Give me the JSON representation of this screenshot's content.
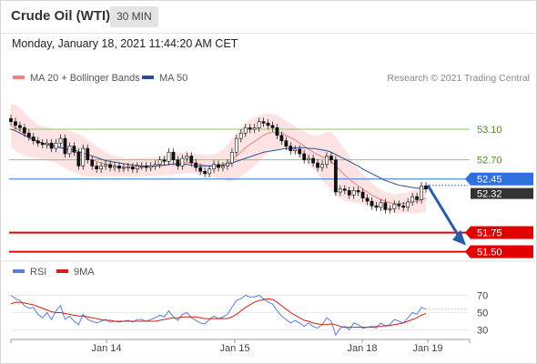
{
  "header": {
    "instrument": "Crude Oil (WTI)",
    "timeframe": "30 MIN"
  },
  "datetime": "Monday, January 18, 2021 11:44:20 AM CET",
  "legend": {
    "ma_bb": {
      "label": "MA 20 + Bollinger Bands",
      "color": "#f08080"
    },
    "ma50": {
      "label": "MA 50",
      "color": "#2e4f8f"
    }
  },
  "copyright": "Research © 2021 Trading Central",
  "rsi_legend": {
    "rsi": {
      "label": "RSI",
      "color": "#5b7fd6"
    },
    "ma9": {
      "label": "9MA",
      "color": "#d02020"
    }
  },
  "chart_data": {
    "type": "line",
    "instrument": "Crude Oil (WTI)",
    "timeframe": "30 MIN",
    "x_tick_labels": [
      "Jan 14",
      "Jan 15",
      "Jan 18",
      "Jan 19"
    ],
    "ylim": [
      51.4,
      53.6
    ],
    "price": [
      53.2,
      53.15,
      53.12,
      53.05,
      53.0,
      52.95,
      52.92,
      52.9,
      52.92,
      52.85,
      52.92,
      52.98,
      52.78,
      52.88,
      52.8,
      52.62,
      52.85,
      52.7,
      52.62,
      52.58,
      52.62,
      52.64,
      52.6,
      52.62,
      52.59,
      52.6,
      52.61,
      52.58,
      52.62,
      52.62,
      52.6,
      52.62,
      52.64,
      52.7,
      52.68,
      52.8,
      52.7,
      52.62,
      52.72,
      52.75,
      52.66,
      52.6,
      52.55,
      52.52,
      52.58,
      52.64,
      52.6,
      52.62,
      52.66,
      52.8,
      52.98,
      53.05,
      53.12,
      53.1,
      53.12,
      53.2,
      53.18,
      53.15,
      53.12,
      53.02,
      52.95,
      52.88,
      52.82,
      52.84,
      52.78,
      52.7,
      52.72,
      52.66,
      52.6,
      52.64,
      52.75,
      52.7,
      52.28,
      52.32,
      52.3,
      52.24,
      52.3,
      52.28,
      52.2,
      52.16,
      52.1,
      52.08,
      52.14,
      52.05,
      52.06,
      52.12,
      52.1,
      52.08,
      52.15,
      52.22,
      52.18,
      52.36,
      52.32
    ],
    "ma50": [
      53.1,
      53.08,
      53.05,
      53.02,
      52.99,
      52.96,
      52.94,
      52.92,
      52.9,
      52.88,
      52.87,
      52.86,
      52.85,
      52.84,
      52.83,
      52.81,
      52.79,
      52.77,
      52.75,
      52.73,
      52.71,
      52.69,
      52.68,
      52.67,
      52.66,
      52.65,
      52.64,
      52.63,
      52.63,
      52.62,
      52.62,
      52.62,
      52.62,
      52.63,
      52.63,
      52.64,
      52.64,
      52.64,
      52.64,
      52.64,
      52.63,
      52.62,
      52.62,
      52.62,
      52.62,
      52.62,
      52.62,
      52.63,
      52.64,
      52.66,
      52.68,
      52.7,
      52.72,
      52.74,
      52.76,
      52.78,
      52.8,
      52.81,
      52.82,
      52.83,
      52.84,
      52.85,
      52.85,
      52.86,
      52.86,
      52.86,
      52.85,
      52.85,
      52.84,
      52.83,
      52.82,
      52.8,
      52.77,
      52.74,
      52.71,
      52.68,
      52.65,
      52.62,
      52.58,
      52.55,
      52.52,
      52.49,
      52.46,
      52.43,
      52.41,
      52.39,
      52.37,
      52.36,
      52.35,
      52.34,
      52.33,
      52.33,
      52.32
    ],
    "ma20": [
      53.15,
      53.12,
      53.08,
      53.04,
      53.0,
      52.97,
      52.94,
      52.92,
      52.91,
      52.9,
      52.88,
      52.86,
      52.84,
      52.82,
      52.8,
      52.78,
      52.75,
      52.72,
      52.7,
      52.68,
      52.66,
      52.64,
      52.63,
      52.62,
      52.61,
      52.61,
      52.6,
      52.6,
      52.6,
      52.6,
      52.61,
      52.61,
      52.62,
      52.62,
      52.63,
      52.64,
      52.65,
      52.66,
      52.66,
      52.66,
      52.66,
      52.65,
      52.64,
      52.63,
      52.62,
      52.62,
      52.63,
      52.64,
      52.66,
      52.7,
      52.75,
      52.8,
      52.86,
      52.9,
      52.94,
      52.98,
      53.02,
      53.05,
      53.06,
      53.06,
      53.05,
      53.02,
      52.99,
      52.96,
      52.92,
      52.88,
      52.84,
      52.8,
      52.77,
      52.74,
      52.72,
      52.68,
      52.62,
      52.56,
      52.5,
      52.45,
      52.4,
      52.36,
      52.32,
      52.28,
      52.24,
      52.21,
      52.18,
      52.16,
      52.14,
      52.13,
      52.13,
      52.13,
      52.14,
      52.15,
      52.16,
      52.18,
      52.2
    ],
    "bb_width": [
      0.28,
      0.3,
      0.3,
      0.28,
      0.26,
      0.24,
      0.22,
      0.22,
      0.22,
      0.22,
      0.22,
      0.24,
      0.25,
      0.26,
      0.26,
      0.26,
      0.26,
      0.24,
      0.22,
      0.2,
      0.18,
      0.16,
      0.14,
      0.14,
      0.13,
      0.12,
      0.12,
      0.12,
      0.12,
      0.12,
      0.12,
      0.12,
      0.12,
      0.13,
      0.13,
      0.14,
      0.14,
      0.14,
      0.14,
      0.13,
      0.13,
      0.13,
      0.13,
      0.14,
      0.14,
      0.15,
      0.17,
      0.2,
      0.24,
      0.28,
      0.3,
      0.32,
      0.33,
      0.33,
      0.32,
      0.3,
      0.28,
      0.26,
      0.24,
      0.22,
      0.2,
      0.19,
      0.18,
      0.18,
      0.18,
      0.19,
      0.2,
      0.22,
      0.25,
      0.3,
      0.35,
      0.38,
      0.38,
      0.36,
      0.34,
      0.3,
      0.26,
      0.22,
      0.2,
      0.18,
      0.16,
      0.14,
      0.13,
      0.12,
      0.12,
      0.12,
      0.13,
      0.13,
      0.14,
      0.15,
      0.16,
      0.17,
      0.18
    ],
    "levels": [
      {
        "value": 53.1,
        "label": "53.10",
        "color": "#8fc46a",
        "style": "resistance"
      },
      {
        "value": 52.7,
        "label": "52.70",
        "color": "#8fc46a",
        "style": "resistance"
      },
      {
        "value": 52.45,
        "label": "52.45",
        "color": "#2f6fe0",
        "style": "pivot"
      },
      {
        "value": 51.75,
        "label": "51.75",
        "color": "#e00000",
        "style": "support"
      },
      {
        "value": 51.5,
        "label": "51.50",
        "color": "#e00000",
        "style": "support"
      }
    ],
    "last_price": {
      "value": 52.32,
      "label": "52.32",
      "color": "#333333"
    },
    "forecast": {
      "from": 52.32,
      "to": 51.75,
      "color": "#2b5aa8"
    },
    "rsi": {
      "ticks": [
        70,
        50,
        30
      ],
      "ylim": [
        20,
        80
      ],
      "values": [
        70,
        66,
        64,
        58,
        55,
        56,
        48,
        44,
        50,
        42,
        52,
        58,
        42,
        46,
        40,
        36,
        48,
        42,
        40,
        38,
        40,
        42,
        39,
        40,
        39,
        40,
        41,
        39,
        42,
        42,
        40,
        42,
        44,
        47,
        45,
        52,
        45,
        41,
        48,
        50,
        44,
        41,
        38,
        37,
        42,
        46,
        43,
        45,
        48,
        56,
        64,
        66,
        70,
        68,
        68,
        70,
        66,
        62,
        60,
        52,
        46,
        42,
        38,
        41,
        38,
        34,
        38,
        34,
        32,
        36,
        44,
        40,
        24,
        32,
        34,
        30,
        38,
        36,
        32,
        33,
        34,
        32,
        38,
        34,
        36,
        42,
        40,
        38,
        44,
        50,
        48,
        56,
        54
      ],
      "ma9": [
        60,
        62,
        62,
        61,
        60,
        59,
        57,
        55,
        53,
        51,
        50,
        50,
        49,
        48,
        47,
        46,
        46,
        45,
        44,
        43,
        42,
        41,
        41,
        40,
        40,
        40,
        40,
        40,
        40,
        40,
        40,
        40,
        40,
        41,
        42,
        43,
        44,
        44,
        45,
        45,
        45,
        45,
        44,
        43,
        43,
        43,
        43,
        43,
        43,
        45,
        48,
        52,
        56,
        59,
        62,
        64,
        65,
        66,
        65,
        62,
        58,
        54,
        50,
        47,
        44,
        41,
        40,
        38,
        37,
        36,
        36,
        37,
        36,
        34,
        33,
        33,
        33,
        33,
        33,
        33,
        33,
        34,
        34,
        35,
        35,
        36,
        37,
        38,
        40,
        42,
        44,
        47,
        49
      ]
    }
  }
}
